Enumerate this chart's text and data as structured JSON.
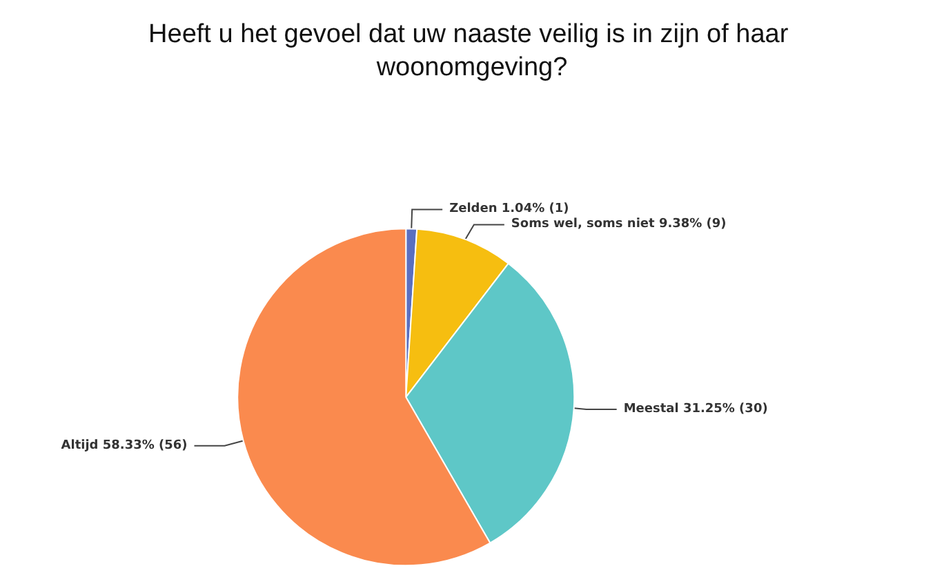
{
  "chart_data": {
    "type": "pie",
    "title": "Heeft u het gevoel dat uw naaste veilig is in zijn of haar woonomgeving?",
    "categories": [
      "Zelden",
      "Soms wel, soms niet",
      "Meestal",
      "Altijd"
    ],
    "values": [
      1,
      9,
      30,
      56
    ],
    "value_labels": [
      "1.04% (1)",
      "9.38% (9)",
      "31.25% (30)",
      "58.33% (56)"
    ],
    "colors": [
      "#5a6fc0",
      "#f6be10",
      "#5ec7c7",
      "#fa8a4e"
    ],
    "legend": false
  }
}
